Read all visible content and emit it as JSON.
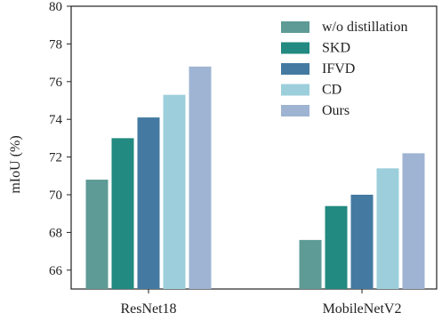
{
  "chart_data": {
    "type": "bar",
    "title": "",
    "xlabel": "",
    "ylabel": "mIoU (%)",
    "ylim": [
      65,
      80
    ],
    "yticks": [
      66,
      68,
      70,
      72,
      74,
      76,
      78,
      80
    ],
    "grid": false,
    "legend_position": "top-right",
    "categories": [
      "ResNet18",
      "MobileNetV2"
    ],
    "series": [
      {
        "name": "w/o distillation",
        "color": "#5e9b96",
        "values": [
          70.8,
          67.6
        ]
      },
      {
        "name": "SKD",
        "color": "#228a80",
        "values": [
          73.0,
          69.4
        ]
      },
      {
        "name": "IFVD",
        "color": "#447aa1",
        "values": [
          74.1,
          70.0
        ]
      },
      {
        "name": "CD",
        "color": "#9ccfdb",
        "values": [
          75.3,
          71.4
        ]
      },
      {
        "name": "Ours",
        "color": "#9fb4d3",
        "values": [
          76.8,
          72.2
        ]
      }
    ]
  }
}
